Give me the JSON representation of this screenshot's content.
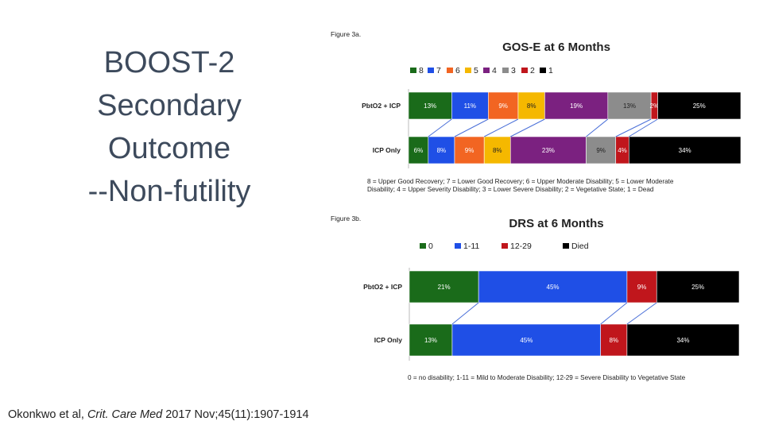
{
  "slide": {
    "title_lines": [
      "BOOST-2",
      "Secondary",
      "Outcome",
      "--Non-futility"
    ],
    "citation": {
      "authors": "Okonkwo et al, ",
      "journal": "Crit. Care Med",
      "details": " 2017 Nov;45(11):1907-1914"
    }
  },
  "chart_data": [
    {
      "type": "bar",
      "stacked": true,
      "orientation": "horizontal",
      "figure_label": "Figure 3a.",
      "title": "GOS-E at 6 Months",
      "categories": [
        "PbtO2 + ICP",
        "ICP Only"
      ],
      "series": [
        {
          "name": "8",
          "color": "#1a6b1a",
          "values": [
            13,
            6
          ],
          "labels": [
            "13%",
            "6%"
          ]
        },
        {
          "name": "7",
          "color": "#1f4fe6",
          "values": [
            11,
            8
          ],
          "labels": [
            "11%",
            "8%"
          ]
        },
        {
          "name": "6",
          "color": "#f26522",
          "values": [
            9,
            9
          ],
          "labels": [
            "9%",
            "9%"
          ]
        },
        {
          "name": "5",
          "color": "#f5b800",
          "values": [
            8,
            8
          ],
          "labels": [
            "8%",
            "8%"
          ]
        },
        {
          "name": "4",
          "color": "#7b2180",
          "values": [
            19,
            23
          ],
          "labels": [
            "19%",
            "23%"
          ]
        },
        {
          "name": "3",
          "color": "#8c8c8c",
          "values": [
            13,
            9
          ],
          "labels": [
            "13%",
            "9%"
          ]
        },
        {
          "name": "2",
          "color": "#c0161c",
          "values": [
            2,
            4
          ],
          "labels": [
            "2%",
            "4%"
          ]
        },
        {
          "name": "1",
          "color": "#000000",
          "values": [
            25,
            34
          ],
          "labels": [
            "25%",
            "34%"
          ]
        }
      ],
      "footnote": [
        "8 = Upper Good Recovery; 7 = Lower Good Recovery; 6 = Upper Moderate Disability; 5 = Lower Moderate",
        "Disability; 4 = Upper Severity Disability; 3 = Lower Severe Disability; 2 = Vegetative State; 1 = Dead"
      ],
      "legend_position": "top"
    },
    {
      "type": "bar",
      "stacked": true,
      "orientation": "horizontal",
      "figure_label": "Figure 3b.",
      "title": "DRS at 6 Months",
      "categories": [
        "PbtO2 + ICP",
        "ICP Only"
      ],
      "series": [
        {
          "name": "0",
          "color": "#1a6b1a",
          "values": [
            21,
            13
          ],
          "labels": [
            "21%",
            "13%"
          ]
        },
        {
          "name": "1-11",
          "color": "#1f4fe6",
          "values": [
            45,
            45
          ],
          "labels": [
            "45%",
            "45%"
          ]
        },
        {
          "name": "12-29",
          "color": "#c0161c",
          "values": [
            9,
            8
          ],
          "labels": [
            "9%",
            "8%"
          ]
        },
        {
          "name": "Died",
          "color": "#000000",
          "values": [
            25,
            34
          ],
          "labels": [
            "25%",
            "34%"
          ]
        }
      ],
      "footnote": [
        "0 = no disability; 1-11 = Mild to Moderate Disability; 12-29 = Severe Disability to Vegetative State"
      ],
      "legend_position": "top"
    }
  ]
}
